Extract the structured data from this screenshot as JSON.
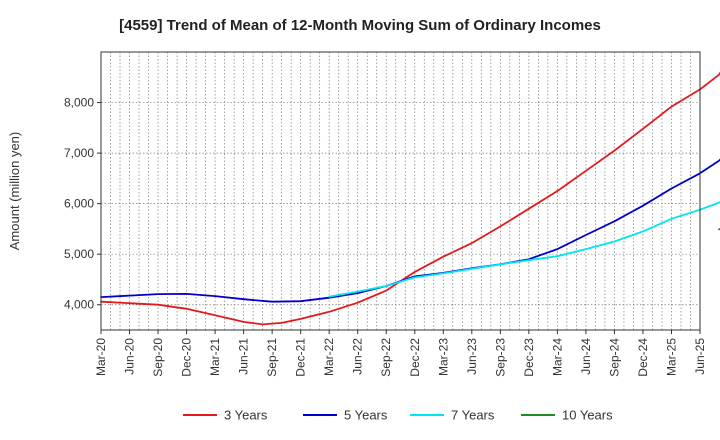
{
  "chart_data": {
    "type": "line",
    "title": "[4559]  Trend of Mean of 12-Month Moving Sum of Ordinary Incomes",
    "xlabel": "",
    "ylabel": "Amount (million yen)",
    "ylim": [
      3500,
      9000
    ],
    "yticks": [
      4000,
      5000,
      6000,
      7000,
      8000
    ],
    "ytick_labels": [
      "4,000",
      "5,000",
      "6,000",
      "7,000",
      "8,000"
    ],
    "x_tick_labels": [
      "Mar-20",
      "Jun-20",
      "Sep-20",
      "Dec-20",
      "Mar-21",
      "Jun-21",
      "Sep-21",
      "Dec-21",
      "Mar-22",
      "Jun-22",
      "Sep-22",
      "Dec-22",
      "Mar-23",
      "Jun-23",
      "Sep-23",
      "Dec-23",
      "Mar-24",
      "Jun-24",
      "Sep-24",
      "Dec-24",
      "Mar-25",
      "Jun-25"
    ],
    "x_range_months": [
      0,
      63
    ],
    "grid": true,
    "legend_position": "bottom",
    "series": [
      {
        "name": "3 Years",
        "color": "#e31a1c",
        "points": [
          [
            0,
            4060
          ],
          [
            3,
            4030
          ],
          [
            6,
            4000
          ],
          [
            9,
            3920
          ],
          [
            12,
            3790
          ],
          [
            15,
            3660
          ],
          [
            17,
            3610
          ],
          [
            19,
            3640
          ],
          [
            21,
            3720
          ],
          [
            24,
            3860
          ],
          [
            27,
            4040
          ],
          [
            30,
            4280
          ],
          [
            33,
            4650
          ],
          [
            36,
            4950
          ],
          [
            39,
            5220
          ],
          [
            42,
            5550
          ],
          [
            45,
            5900
          ],
          [
            48,
            6250
          ],
          [
            51,
            6650
          ],
          [
            54,
            7050
          ],
          [
            57,
            7480
          ],
          [
            60,
            7920
          ],
          [
            63,
            8260
          ],
          [
            65,
            8550
          ],
          [
            66,
            8830
          ]
        ]
      },
      {
        "name": "5 Years",
        "color": "#0000cc",
        "points": [
          [
            0,
            4150
          ],
          [
            3,
            4180
          ],
          [
            6,
            4210
          ],
          [
            9,
            4215
          ],
          [
            12,
            4170
          ],
          [
            15,
            4110
          ],
          [
            18,
            4060
          ],
          [
            21,
            4070
          ],
          [
            24,
            4140
          ],
          [
            27,
            4230
          ],
          [
            30,
            4370
          ],
          [
            33,
            4560
          ],
          [
            36,
            4630
          ],
          [
            39,
            4720
          ],
          [
            42,
            4800
          ],
          [
            45,
            4900
          ],
          [
            48,
            5100
          ],
          [
            51,
            5380
          ],
          [
            54,
            5650
          ],
          [
            57,
            5960
          ],
          [
            60,
            6300
          ],
          [
            63,
            6600
          ],
          [
            65,
            6850
          ],
          [
            66,
            7020
          ]
        ]
      },
      {
        "name": "7 Years",
        "color": "#00e5ee",
        "points": [
          [
            24,
            4160
          ],
          [
            27,
            4260
          ],
          [
            30,
            4370
          ],
          [
            33,
            4540
          ],
          [
            36,
            4620
          ],
          [
            39,
            4710
          ],
          [
            42,
            4800
          ],
          [
            45,
            4880
          ],
          [
            48,
            4960
          ],
          [
            51,
            5100
          ],
          [
            54,
            5250
          ],
          [
            57,
            5450
          ],
          [
            60,
            5700
          ],
          [
            63,
            5880
          ],
          [
            65,
            6020
          ],
          [
            66,
            6130
          ]
        ]
      },
      {
        "name": "10 Years",
        "color": "#228b22",
        "points": [
          [
            65,
            5490
          ],
          [
            66,
            5590
          ]
        ]
      }
    ]
  }
}
